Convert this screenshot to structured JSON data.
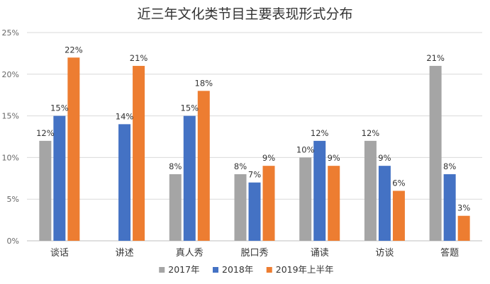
{
  "chart_data": {
    "type": "bar",
    "title": "近三年文化类节目主要表现形式分布",
    "categories": [
      "谈话",
      "讲述",
      "真人秀",
      "脱口秀",
      "诵读",
      "访谈",
      "答题"
    ],
    "series": [
      {
        "name": "2017年",
        "color": "#a5a5a5",
        "values": [
          12,
          null,
          8,
          8,
          10,
          12,
          21
        ],
        "labels": [
          "12%",
          "",
          "8%",
          "8%",
          "10%",
          "12%",
          "21%"
        ]
      },
      {
        "name": "2018年",
        "color": "#4472c4",
        "values": [
          15,
          14,
          15,
          7,
          12,
          9,
          8
        ],
        "labels": [
          "15%",
          "14%",
          "15%",
          "7%",
          "12%",
          "9%",
          "8%"
        ]
      },
      {
        "name": "2019年上半年",
        "color": "#ed7d31",
        "values": [
          22,
          21,
          18,
          9,
          9,
          6,
          3
        ],
        "labels": [
          "22%",
          "21%",
          "18%",
          "9%",
          "9%",
          "6%",
          "3%"
        ]
      }
    ],
    "yticks": [
      "0%",
      "5%",
      "10%",
      "15%",
      "20%",
      "25%"
    ],
    "ylim": [
      0,
      25
    ],
    "grid": true,
    "legend_position": "bottom"
  }
}
